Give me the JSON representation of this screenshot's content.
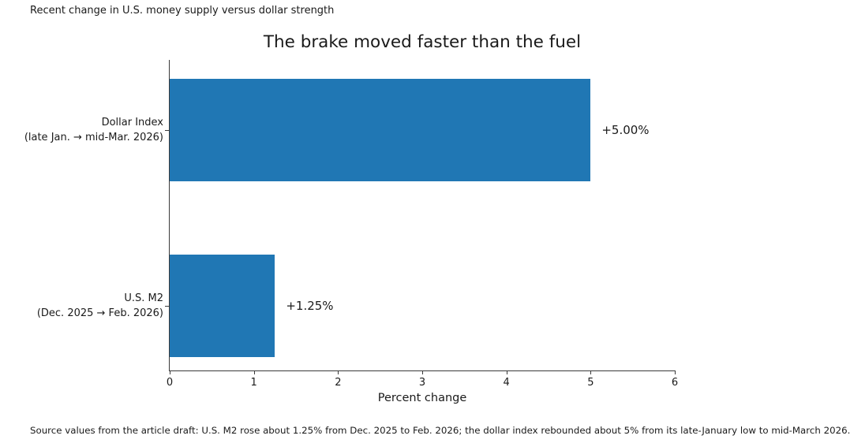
{
  "header": {
    "note": "Recent change in U.S. money supply versus dollar strength"
  },
  "chart_data": {
    "type": "bar",
    "orientation": "horizontal",
    "title": "The brake moved faster than the fuel",
    "xlabel": "Percent change",
    "xlim": [
      0,
      6
    ],
    "xticks": [
      "0",
      "1",
      "2",
      "3",
      "4",
      "5",
      "6"
    ],
    "grid": false,
    "legend": null,
    "bar_color": "#2077b4",
    "categories": [
      [
        "Dollar Index",
        "(late Jan. → mid-Mar. 2026)"
      ],
      [
        "U.S. M2",
        "(Dec. 2025 → Feb. 2026)"
      ]
    ],
    "values": [
      5.0,
      1.25
    ],
    "bar_labels": [
      "+5.00%",
      "+1.25%"
    ]
  },
  "footer": {
    "note": "Source values from the article draft: U.S. M2 rose about 1.25% from Dec. 2025 to Feb. 2026; the dollar index rebounded about 5% from its late-January low to mid-March 2026."
  }
}
